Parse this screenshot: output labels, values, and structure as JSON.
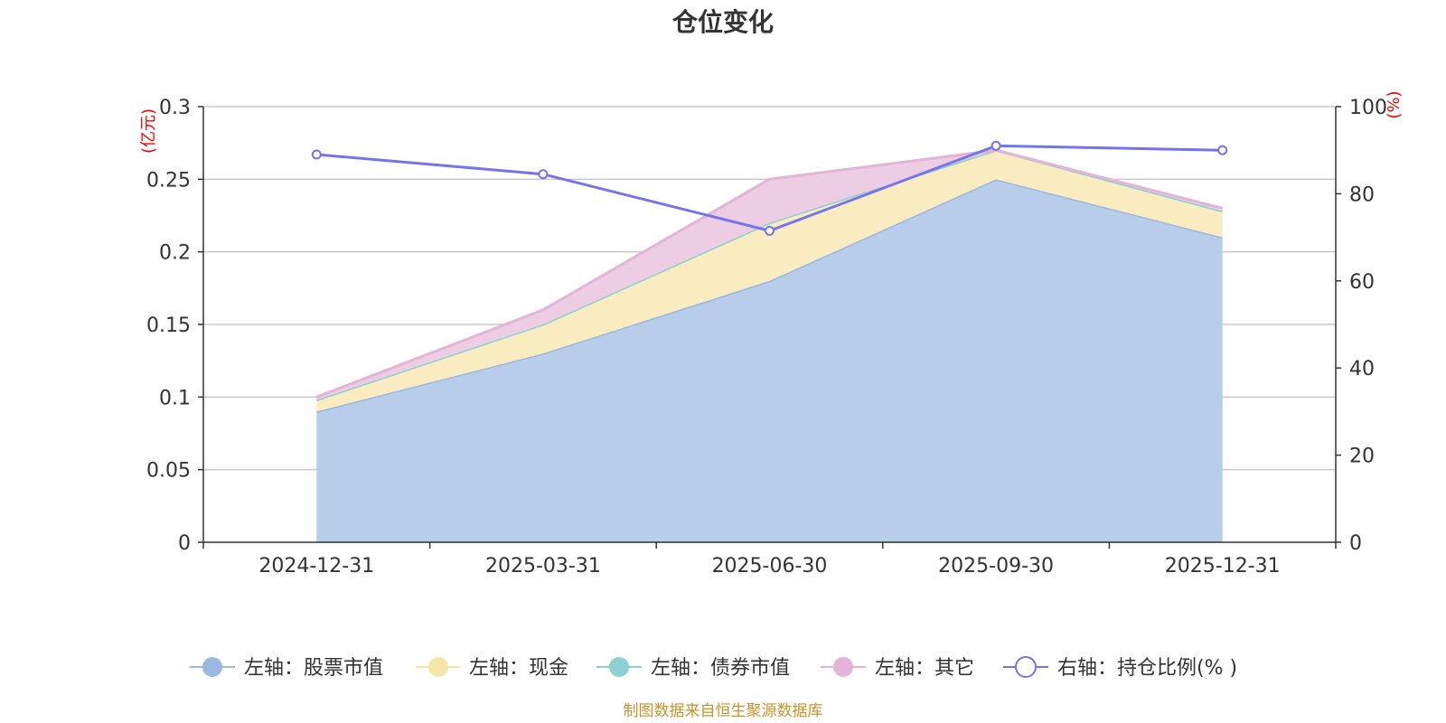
{
  "chart_data": {
    "type": "area",
    "title": "仓位变化",
    "categories": [
      "2024-12-31",
      "2025-03-31",
      "2025-06-30",
      "2025-09-30",
      "2025-12-31"
    ],
    "left_axis": {
      "unit": "(亿元)",
      "min": 0,
      "max": 0.3,
      "ticks": [
        "0",
        "0.05",
        "0.1",
        "0.15",
        "0.2",
        "0.25",
        "0.3"
      ]
    },
    "right_axis": {
      "unit": "(%)",
      "min": 0,
      "max": 100,
      "ticks": [
        "0",
        "20",
        "40",
        "60",
        "80",
        "100"
      ]
    },
    "series": [
      {
        "name": "左轴：股票市值",
        "axis": "left",
        "kind": "stacked-area",
        "color": "#9bb8e0",
        "fill": "#b7cde9",
        "values": [
          0.09,
          0.13,
          0.18,
          0.25,
          0.21
        ]
      },
      {
        "name": "左轴：现金",
        "axis": "left",
        "kind": "stacked-area",
        "color": "#f5e6a8",
        "fill": "#f8ecc0",
        "values": [
          0.008,
          0.02,
          0.04,
          0.02,
          0.018
        ]
      },
      {
        "name": "左轴：债券市值",
        "axis": "left",
        "kind": "stacked-area",
        "color": "#8ecfcf",
        "fill": "#b9e3e3",
        "values": [
          0,
          0,
          0,
          0,
          0
        ]
      },
      {
        "name": "左轴：其它",
        "axis": "left",
        "kind": "stacked-area",
        "color": "#e3b4d6",
        "fill": "#edcde4",
        "values": [
          0.002,
          0.01,
          0.03,
          0.0,
          0.002
        ]
      },
      {
        "name": "右轴：持仓比例(%)",
        "axis": "right",
        "kind": "line",
        "color": "#7474ee",
        "values": [
          89,
          84.5,
          71.5,
          91,
          90
        ]
      }
    ],
    "legend": {
      "position": "bottom",
      "items": [
        "左轴：股票市值",
        "左轴：现金",
        "左轴：债券市值",
        "左轴：其它",
        "右轴：持仓比例(% )"
      ]
    },
    "grid": true
  },
  "source_note": "制图数据来自恒生聚源数据库"
}
